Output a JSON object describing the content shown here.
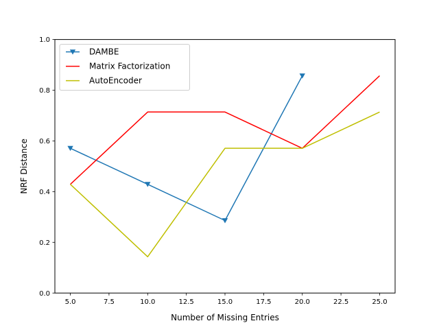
{
  "chart_data": {
    "type": "line",
    "title": "",
    "xlabel": "Number of Missing Entries",
    "ylabel": "NRF Distance",
    "xlim": [
      4.0,
      26.0
    ],
    "ylim": [
      0.0,
      1.0
    ],
    "xticks": [
      5.0,
      7.5,
      10.0,
      12.5,
      15.0,
      17.5,
      20.0,
      22.5,
      25.0
    ],
    "xtick_labels": [
      "5.0",
      "7.5",
      "10.0",
      "12.5",
      "15.0",
      "17.5",
      "20.0",
      "22.5",
      "25.0"
    ],
    "yticks": [
      0.0,
      0.2,
      0.4,
      0.6,
      0.8,
      1.0
    ],
    "ytick_labels": [
      "0.0",
      "0.2",
      "0.4",
      "0.6",
      "0.8",
      "1.0"
    ],
    "grid": false,
    "legend_position": "top-left",
    "series": [
      {
        "name": "DAMBE",
        "color": "#1f77b4",
        "marker": "triangle-down",
        "x": [
          5,
          10,
          15,
          20
        ],
        "y": [
          0.571,
          0.429,
          0.286,
          0.857
        ]
      },
      {
        "name": "Matrix Factorization",
        "color": "#ff0000",
        "marker": "none",
        "x": [
          5,
          10,
          15,
          20,
          25
        ],
        "y": [
          0.429,
          0.714,
          0.714,
          0.571,
          0.857
        ]
      },
      {
        "name": "AutoEncoder",
        "color": "#bfbf00",
        "marker": "none",
        "x": [
          5,
          10,
          15,
          20,
          25
        ],
        "y": [
          0.429,
          0.143,
          0.571,
          0.571,
          0.714
        ]
      }
    ]
  }
}
